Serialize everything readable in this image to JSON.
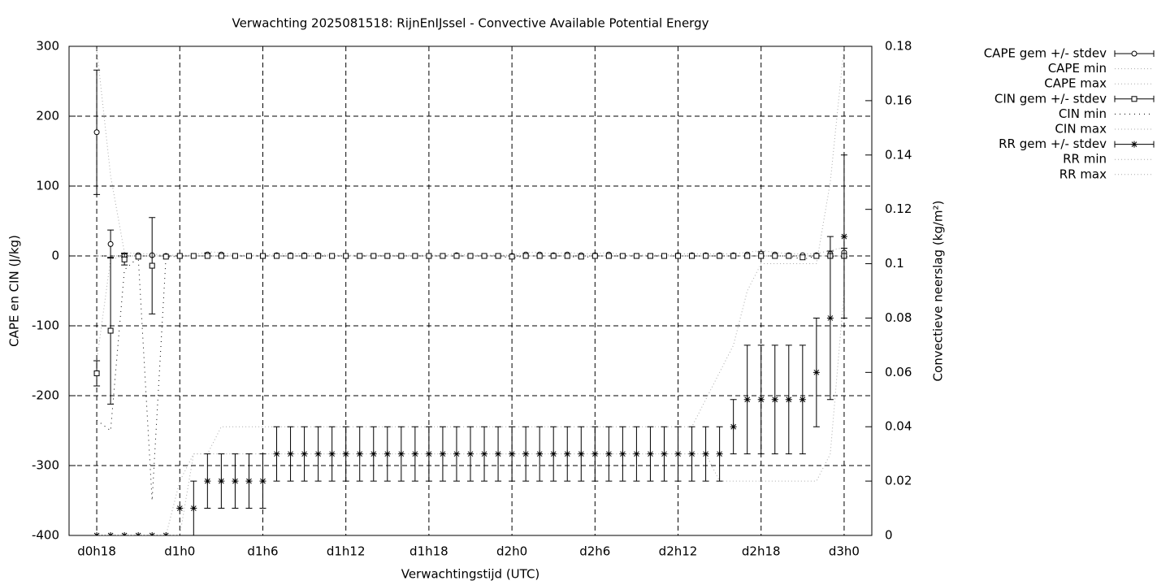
{
  "chart_data": {
    "type": "errorbar",
    "title": "Verwachting 2025081518: RijnEnIJssel - Convective Available Potential Energy",
    "x_label": "Verwachtingstijd (UTC)",
    "y_label": "CAPE en CIN (J/kg)",
    "y2_label": "Convectieve neerslag (kg/m²)",
    "x": [
      18,
      19,
      20,
      21,
      22,
      23,
      24,
      25,
      26,
      27,
      28,
      29,
      30,
      31,
      32,
      33,
      34,
      35,
      36,
      37,
      38,
      39,
      40,
      41,
      42,
      43,
      44,
      45,
      46,
      47,
      48,
      49,
      50,
      51,
      52,
      53,
      54,
      55,
      56,
      57,
      58,
      59,
      60,
      61,
      62,
      63,
      64,
      65,
      66,
      67,
      68,
      69,
      70,
      71,
      72
    ],
    "xlim": [
      16,
      74
    ],
    "xticks": [
      {
        "value": 18,
        "label": "d0h18"
      },
      {
        "value": 24,
        "label": "d1h0"
      },
      {
        "value": 30,
        "label": "d1h6"
      },
      {
        "value": 36,
        "label": "d1h12"
      },
      {
        "value": 42,
        "label": "d1h18"
      },
      {
        "value": 48,
        "label": "d2h0"
      },
      {
        "value": 54,
        "label": "d2h6"
      },
      {
        "value": 60,
        "label": "d2h12"
      },
      {
        "value": 66,
        "label": "d2h18"
      },
      {
        "value": 72,
        "label": "d3h0"
      }
    ],
    "ylim": [
      -400,
      300
    ],
    "yticks": [
      -400,
      -300,
      -200,
      -100,
      0,
      100,
      200,
      300
    ],
    "y2lim": [
      0,
      0.18
    ],
    "y2ticks": [
      0,
      0.02,
      0.04,
      0.06,
      0.08,
      0.1,
      0.12,
      0.14,
      0.16,
      0.18
    ],
    "grid": true,
    "legend": "outside-right",
    "series": [
      {
        "name": "CAPE gem +/- stdev",
        "color": "#000000",
        "marker": "circle",
        "values": [
          177,
          17,
          1,
          1,
          1,
          0,
          0,
          0,
          2,
          2,
          0,
          0,
          0,
          1,
          1,
          1,
          1,
          0,
          0,
          0,
          0,
          0,
          0,
          0,
          0,
          0,
          1,
          0,
          0,
          0,
          0,
          2,
          2,
          1,
          2,
          1,
          1,
          2,
          0,
          0,
          0,
          0,
          1,
          1,
          1,
          1,
          1,
          2,
          3,
          2,
          1,
          1,
          1,
          3,
          5
        ],
        "errors": [
          89,
          20,
          3,
          0,
          0,
          0,
          0,
          0,
          2,
          0,
          0,
          0,
          0,
          0,
          0,
          0,
          0,
          0,
          0,
          0,
          0,
          0,
          0,
          0,
          0,
          0,
          0,
          0,
          0,
          0,
          0,
          0,
          0,
          0,
          0,
          0,
          0,
          0,
          0,
          0,
          0,
          0,
          0,
          0,
          0,
          0,
          0,
          0,
          3,
          0,
          0,
          0,
          0,
          4,
          6
        ]
      },
      {
        "name": "CAPE min",
        "color": "#aaaaaa",
        "values": [
          0,
          0,
          0,
          0,
          0,
          0,
          0,
          0,
          0,
          0,
          0,
          0,
          0,
          0,
          0,
          0,
          0,
          0,
          0,
          0,
          0,
          0,
          0,
          0,
          0,
          0,
          0,
          0,
          0,
          0,
          0,
          0,
          0,
          0,
          0,
          0,
          0,
          0,
          0,
          0,
          0,
          0,
          0,
          0,
          0,
          0,
          0,
          0,
          0,
          0,
          0,
          0,
          0,
          0,
          0
        ]
      },
      {
        "name": "CAPE max",
        "color": "#aaaaaa",
        "values": [
          296,
          115,
          5,
          3,
          3,
          1,
          1,
          1,
          6,
          5,
          1,
          1,
          1,
          3,
          3,
          3,
          3,
          1,
          1,
          1,
          1,
          1,
          1,
          1,
          1,
          1,
          3,
          1,
          1,
          1,
          1,
          5,
          5,
          3,
          5,
          3,
          3,
          5,
          1,
          1,
          1,
          1,
          3,
          3,
          3,
          3,
          3,
          5,
          8,
          5,
          3,
          3,
          3,
          8,
          12
        ]
      },
      {
        "name": "CIN gem +/- stdev",
        "color": "#000000",
        "marker": "square",
        "values": [
          -168,
          -107,
          -5,
          -1,
          -14,
          -1,
          0,
          0,
          0,
          0,
          0,
          0,
          0,
          0,
          0,
          0,
          0,
          0,
          0,
          0,
          0,
          0,
          0,
          0,
          0,
          0,
          0,
          0,
          0,
          0,
          -1,
          0,
          0,
          0,
          0,
          -1,
          0,
          0,
          0,
          0,
          0,
          0,
          0,
          0,
          0,
          0,
          0,
          0,
          0,
          0,
          0,
          -2,
          0,
          0,
          0
        ],
        "errors": [
          18,
          105,
          8,
          0,
          69,
          0,
          0,
          0,
          0,
          0,
          0,
          0,
          0,
          0,
          0,
          0,
          0,
          0,
          0,
          0,
          0,
          0,
          0,
          0,
          0,
          0,
          0,
          0,
          0,
          0,
          0,
          0,
          0,
          0,
          0,
          0,
          0,
          0,
          0,
          0,
          0,
          0,
          0,
          0,
          0,
          0,
          0,
          0,
          0,
          0,
          0,
          0,
          0,
          0,
          0
        ]
      },
      {
        "name": "CIN min",
        "color": "#000000",
        "values": [
          -235,
          -250,
          -20,
          -2,
          -350,
          -2,
          0,
          0,
          0,
          0,
          0,
          0,
          0,
          0,
          0,
          0,
          0,
          0,
          0,
          0,
          0,
          0,
          0,
          0,
          0,
          0,
          0,
          0,
          0,
          0,
          -3,
          0,
          0,
          0,
          0,
          -3,
          0,
          0,
          0,
          0,
          0,
          0,
          0,
          0,
          0,
          0,
          0,
          0,
          0,
          0,
          0,
          -5,
          0,
          0,
          0
        ]
      },
      {
        "name": "CIN max",
        "color": "#aaaaaa",
        "values": [
          -150,
          -5,
          0,
          0,
          0,
          0,
          0,
          0,
          0,
          0,
          0,
          0,
          0,
          0,
          0,
          0,
          0,
          0,
          0,
          0,
          0,
          0,
          0,
          0,
          0,
          0,
          0,
          0,
          0,
          0,
          0,
          0,
          0,
          0,
          0,
          0,
          0,
          0,
          0,
          0,
          0,
          0,
          0,
          0,
          0,
          0,
          0,
          0,
          0,
          0,
          0,
          0,
          0,
          0,
          0
        ]
      },
      {
        "name": "RR gem +/- stdev",
        "color": "#000000",
        "marker": "star",
        "axis": "y2",
        "values": [
          0,
          0,
          0,
          0,
          0,
          0,
          0.01,
          0.01,
          0.02,
          0.02,
          0.02,
          0.02,
          0.02,
          0.03,
          0.03,
          0.03,
          0.03,
          0.03,
          0.03,
          0.03,
          0.03,
          0.03,
          0.03,
          0.03,
          0.03,
          0.03,
          0.03,
          0.03,
          0.03,
          0.03,
          0.03,
          0.03,
          0.03,
          0.03,
          0.03,
          0.03,
          0.03,
          0.03,
          0.03,
          0.03,
          0.03,
          0.03,
          0.03,
          0.03,
          0.03,
          0.03,
          0.04,
          0.05,
          0.05,
          0.05,
          0.05,
          0.05,
          0.06,
          0.08,
          0.11
        ],
        "errors": [
          0,
          0,
          0,
          0,
          0,
          0,
          0,
          0.01,
          0.01,
          0.01,
          0.01,
          0.01,
          0.01,
          0.01,
          0.01,
          0.01,
          0.01,
          0.01,
          0.01,
          0.01,
          0.01,
          0.01,
          0.01,
          0.01,
          0.01,
          0.01,
          0.01,
          0.01,
          0.01,
          0.01,
          0.01,
          0.01,
          0.01,
          0.01,
          0.01,
          0.01,
          0.01,
          0.01,
          0.01,
          0.01,
          0.01,
          0.01,
          0.01,
          0.01,
          0.01,
          0.01,
          0.01,
          0.02,
          0.02,
          0.02,
          0.02,
          0.02,
          0.02,
          0.03,
          0.03
        ]
      },
      {
        "name": "RR min",
        "color": "#aaaaaa",
        "axis": "y2",
        "values": [
          0,
          0,
          0,
          0,
          0,
          0,
          0,
          0.03,
          0.03,
          0.03,
          0.03,
          0.03,
          0.03,
          0.03,
          0.03,
          0.03,
          0.03,
          0.03,
          0.03,
          0.03,
          0.03,
          0.03,
          0.03,
          0.03,
          0.03,
          0.03,
          0.03,
          0.03,
          0.03,
          0.03,
          0.03,
          0.03,
          0.03,
          0.03,
          0.03,
          0.03,
          0.03,
          0.03,
          0.03,
          0.03,
          0.03,
          0.03,
          0.03,
          0.03,
          0.03,
          0.02,
          0.02,
          0.02,
          0.02,
          0.02,
          0.02,
          0.02,
          0.02,
          0.03,
          0.09
        ]
      },
      {
        "name": "RR max",
        "color": "#aaaaaa",
        "axis": "y2",
        "values": [
          0,
          0,
          0,
          0,
          0,
          0,
          0.02,
          0.03,
          0.03,
          0.04,
          0.04,
          0.04,
          0.04,
          0.04,
          0.04,
          0.04,
          0.04,
          0.04,
          0.04,
          0.04,
          0.04,
          0.04,
          0.04,
          0.04,
          0.04,
          0.04,
          0.04,
          0.04,
          0.04,
          0.04,
          0.04,
          0.04,
          0.04,
          0.04,
          0.04,
          0.04,
          0.04,
          0.04,
          0.04,
          0.04,
          0.04,
          0.04,
          0.04,
          0.04,
          0.05,
          0.06,
          0.07,
          0.09,
          0.1,
          0.1,
          0.1,
          0.1,
          0.1,
          0.13,
          0.18
        ]
      }
    ]
  }
}
